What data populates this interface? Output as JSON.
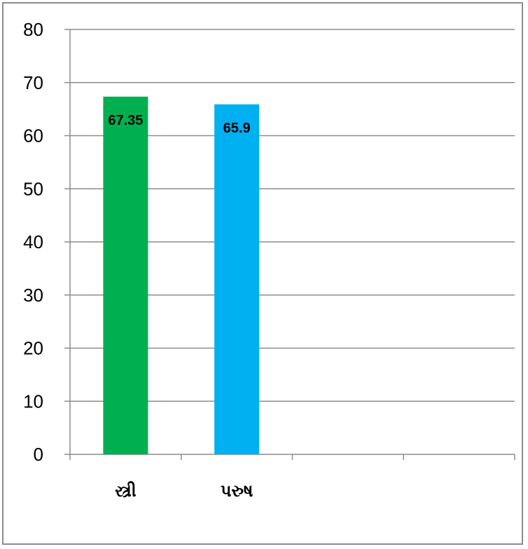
{
  "chart_data": {
    "type": "bar",
    "categories": [
      "સ્ત્રી",
      "પરુષ"
    ],
    "values": [
      67.35,
      65.9
    ],
    "data_labels": [
      "67.35",
      "65.9"
    ],
    "bar_colors": [
      "#00b050",
      "#00b0f0"
    ],
    "ylim": [
      0,
      80
    ],
    "y_ticks": [
      "0",
      "10",
      "20",
      "30",
      "40",
      "50",
      "60",
      "70",
      "80"
    ],
    "x_slots": 4,
    "grid": true,
    "title": "",
    "xlabel": "",
    "ylabel": ""
  }
}
